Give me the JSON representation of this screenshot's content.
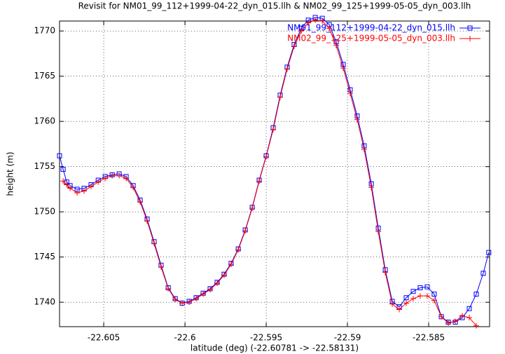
{
  "chart_data": {
    "type": "linespoints",
    "title": "Revisit for NM01_99_112+1999-04-22_dyn_015.llh & NM02_99_125+1999-05-05_dyn_003.llh",
    "xlabel": "latitude (deg) (-22.60781 -> -22.58131)",
    "ylabel": "height (m)",
    "xlim": [
      -22.60772,
      -22.58125
    ],
    "ylim": [
      1737.3,
      1771.1
    ],
    "xticks": [
      -22.605,
      -22.6,
      -22.595,
      -22.59,
      -22.585
    ],
    "yticks": [
      1740,
      1745,
      1750,
      1755,
      1760,
      1765,
      1770
    ],
    "grid": true,
    "legend": "top-right",
    "series": [
      {
        "name": "NM01_99_112+1999-04-22_dyn_015.llh",
        "color": "#0000ff",
        "marker": "square",
        "x": [
          -22.60772,
          -22.6075,
          -22.60728,
          -22.60707,
          -22.60664,
          -22.60621,
          -22.60578,
          -22.60534,
          -22.60491,
          -22.60448,
          -22.60405,
          -22.60362,
          -22.60319,
          -22.60276,
          -22.60233,
          -22.6019,
          -22.60147,
          -22.60103,
          -22.6006,
          -22.60017,
          -22.59974,
          -22.59931,
          -22.59888,
          -22.59845,
          -22.59802,
          -22.59759,
          -22.59716,
          -22.59672,
          -22.59629,
          -22.59586,
          -22.59543,
          -22.595,
          -22.59457,
          -22.59414,
          -22.59371,
          -22.59328,
          -22.59284,
          -22.59241,
          -22.59198,
          -22.59155,
          -22.59112,
          -22.59069,
          -22.59026,
          -22.58983,
          -22.5894,
          -22.58897,
          -22.58853,
          -22.5881,
          -22.58767,
          -22.58724,
          -22.58681,
          -22.58638,
          -22.58595,
          -22.58552,
          -22.58509,
          -22.58466,
          -22.58422,
          -22.58379,
          -22.58336,
          -22.58293,
          -22.5825,
          -22.58207,
          -22.58164,
          -22.5813
        ],
        "values": [
          1756.2,
          1754.7,
          1753.3,
          1752.9,
          1752.5,
          1752.6,
          1753.0,
          1753.5,
          1753.9,
          1754.1,
          1754.2,
          1753.9,
          1752.9,
          1751.3,
          1749.2,
          1746.7,
          1744.1,
          1741.6,
          1740.4,
          1739.9,
          1740.1,
          1740.5,
          1741.0,
          1741.5,
          1742.2,
          1743.1,
          1744.3,
          1745.9,
          1748.0,
          1750.5,
          1753.5,
          1756.2,
          1759.3,
          1762.9,
          1766.0,
          1768.5,
          1770.3,
          1771.2,
          1771.5,
          1771.4,
          1770.7,
          1768.8,
          1766.3,
          1763.5,
          1760.6,
          1757.3,
          1753.1,
          1748.2,
          1743.6,
          1740.1,
          1739.5,
          1740.5,
          1741.2,
          1741.6,
          1741.7,
          1740.9,
          1738.4,
          1737.8,
          1737.8,
          1738.3,
          1739.3,
          1740.9,
          1743.2,
          1745.5
        ]
      },
      {
        "name": "NM02_99_125+1999-05-05_dyn_003.llh",
        "color": "#ff0000",
        "marker": "plus",
        "x": [
          -22.6075,
          -22.60728,
          -22.60707,
          -22.60664,
          -22.60621,
          -22.60578,
          -22.60534,
          -22.60491,
          -22.60448,
          -22.60405,
          -22.60362,
          -22.60319,
          -22.60276,
          -22.60233,
          -22.6019,
          -22.60147,
          -22.60103,
          -22.6006,
          -22.60017,
          -22.59974,
          -22.59931,
          -22.59888,
          -22.59845,
          -22.59802,
          -22.59759,
          -22.59716,
          -22.59672,
          -22.59629,
          -22.59586,
          -22.59543,
          -22.595,
          -22.59457,
          -22.59414,
          -22.59371,
          -22.59328,
          -22.59284,
          -22.59241,
          -22.59198,
          -22.59155,
          -22.59112,
          -22.59069,
          -22.59026,
          -22.58983,
          -22.5894,
          -22.58897,
          -22.58853,
          -22.5881,
          -22.58767,
          -22.58724,
          -22.58681,
          -22.58638,
          -22.58595,
          -22.58552,
          -22.58509,
          -22.58466,
          -22.58422,
          -22.58379,
          -22.58336,
          -22.58293,
          -22.5825,
          -22.58207
        ],
        "values": [
          1753.4,
          1753.0,
          1752.6,
          1752.1,
          1752.3,
          1752.8,
          1753.3,
          1753.7,
          1754.0,
          1754.0,
          1753.7,
          1752.7,
          1751.1,
          1749.0,
          1746.5,
          1743.9,
          1741.5,
          1740.3,
          1739.9,
          1740.0,
          1740.4,
          1740.9,
          1741.4,
          1742.1,
          1743.0,
          1744.2,
          1745.8,
          1747.9,
          1750.4,
          1753.4,
          1756.1,
          1759.1,
          1762.7,
          1765.8,
          1768.3,
          1770.0,
          1770.9,
          1771.2,
          1771.1,
          1770.3,
          1768.4,
          1765.9,
          1763.1,
          1760.2,
          1756.9,
          1752.7,
          1747.8,
          1743.3,
          1739.8,
          1739.2,
          1739.9,
          1740.4,
          1740.7,
          1740.7,
          1740.2,
          1738.4,
          1737.7,
          1737.9,
          1738.5,
          1738.3,
          1737.4
        ]
      }
    ]
  }
}
